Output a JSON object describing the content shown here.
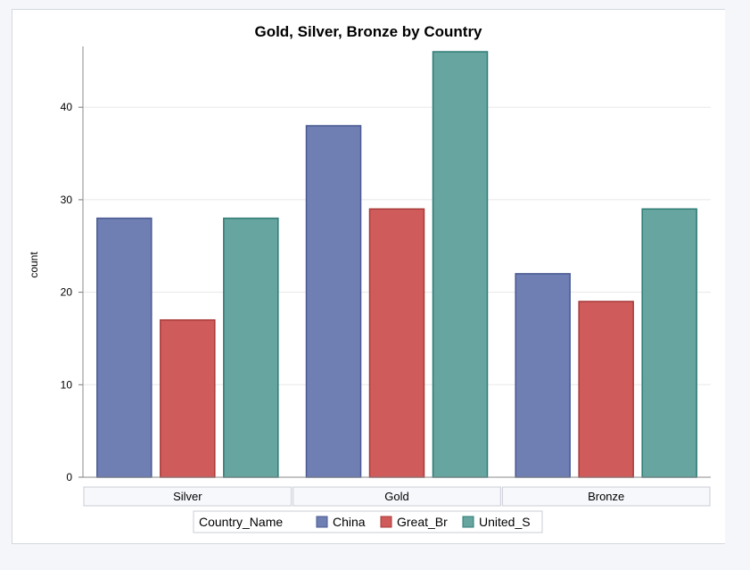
{
  "chart_data": {
    "type": "bar",
    "title": "Gold, Silver, Bronze by Country",
    "ylabel": "count",
    "xlabel": "",
    "categories": [
      "Silver",
      "Gold",
      "Bronze"
    ],
    "series": [
      {
        "name": "China",
        "values": [
          28,
          38,
          22
        ],
        "color": "#6f7eb3"
      },
      {
        "name": "Great_Br",
        "values": [
          17,
          29,
          19
        ],
        "color": "#d05b5b"
      },
      {
        "name": "United_S",
        "values": [
          28,
          46,
          29
        ],
        "color": "#66a5a0"
      }
    ],
    "ylim": [
      0,
      46
    ],
    "yticks": [
      0,
      10,
      20,
      30,
      40
    ],
    "grid": true,
    "legend_title": "Country_Name",
    "legend_position": "bottom"
  },
  "colors": {
    "China_border": "#4a5a92",
    "Great_Br_border": "#a83a3a",
    "United_S_border": "#2e7c76"
  }
}
